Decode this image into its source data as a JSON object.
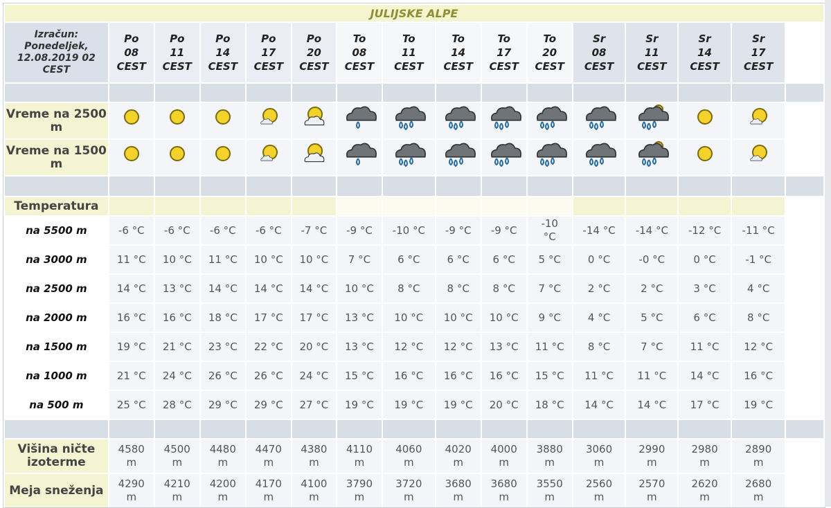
{
  "header": {
    "title": "JULIJSKE ALPE",
    "calc": "Izračun: Ponedeljek, 12.08.2019 02 CEST"
  },
  "columns": [
    {
      "day": "Po",
      "hour": "08",
      "tz": "CEST"
    },
    {
      "day": "Po",
      "hour": "11",
      "tz": "CEST"
    },
    {
      "day": "Po",
      "hour": "14",
      "tz": "CEST"
    },
    {
      "day": "Po",
      "hour": "17",
      "tz": "CEST"
    },
    {
      "day": "Po",
      "hour": "20",
      "tz": "CEST"
    },
    {
      "day": "To",
      "hour": "08",
      "tz": "CEST"
    },
    {
      "day": "To",
      "hour": "11",
      "tz": "CEST"
    },
    {
      "day": "To",
      "hour": "14",
      "tz": "CEST"
    },
    {
      "day": "To",
      "hour": "17",
      "tz": "CEST"
    },
    {
      "day": "To",
      "hour": "20",
      "tz": "CEST"
    },
    {
      "day": "Sr",
      "hour": "08",
      "tz": "CEST"
    },
    {
      "day": "Sr",
      "hour": "11",
      "tz": "CEST"
    },
    {
      "day": "Sr",
      "hour": "14",
      "tz": "CEST"
    },
    {
      "day": "Sr",
      "hour": "17",
      "tz": "CEST"
    }
  ],
  "weather_rows": [
    {
      "label": "Vreme na 2500 m"
    },
    {
      "label": "Vreme na 1500 m"
    }
  ],
  "temperature": {
    "label": "Temperatura",
    "rows": [
      {
        "label": "na 5500 m",
        "cells": [
          "-6 °C",
          "-6 °C",
          "-6 °C",
          "-6 °C",
          "-7 °C",
          "-9 °C",
          "-10 °C",
          "-9 °C",
          "-9 °C",
          "-10 °C",
          "-14 °C",
          "-14 °C",
          "-12 °C",
          "-11 °C"
        ]
      },
      {
        "label": "na 3000 m",
        "cells": [
          "11 °C",
          "10 °C",
          "11 °C",
          "10 °C",
          "10 °C",
          "7 °C",
          "6 °C",
          "6 °C",
          "6 °C",
          "5 °C",
          "0 °C",
          "-0 °C",
          "0 °C",
          "-1 °C"
        ]
      },
      {
        "label": "na 2500 m",
        "cells": [
          "14 °C",
          "13 °C",
          "14 °C",
          "14 °C",
          "14 °C",
          "10 °C",
          "8 °C",
          "8 °C",
          "8 °C",
          "7 °C",
          "2 °C",
          "2 °C",
          "3 °C",
          "4 °C"
        ]
      },
      {
        "label": "na 2000 m",
        "cells": [
          "16 °C",
          "16 °C",
          "18 °C",
          "17 °C",
          "17 °C",
          "13 °C",
          "10 °C",
          "10 °C",
          "10 °C",
          "9 °C",
          "4 °C",
          "5 °C",
          "6 °C",
          "8 °C"
        ]
      },
      {
        "label": "na 1500 m",
        "cells": [
          "19 °C",
          "21 °C",
          "23 °C",
          "22 °C",
          "20 °C",
          "13 °C",
          "12 °C",
          "12 °C",
          "13 °C",
          "11 °C",
          "8 °C",
          "7 °C",
          "11 °C",
          "12 °C"
        ]
      },
      {
        "label": "na 1000 m",
        "cells": [
          "21 °C",
          "24 °C",
          "26 °C",
          "26 °C",
          "24 °C",
          "15 °C",
          "16 °C",
          "16 °C",
          "16 °C",
          "15 °C",
          "11 °C",
          "11 °C",
          "14 °C",
          "16 °C"
        ]
      },
      {
        "label": "na 500 m",
        "cells": [
          "25 °C",
          "28 °C",
          "29 °C",
          "29 °C",
          "27 °C",
          "19 °C",
          "19 °C",
          "19 °C",
          "20 °C",
          "18 °C",
          "14 °C",
          "14 °C",
          "17 °C",
          "19 °C"
        ]
      }
    ]
  },
  "isotherm": {
    "label": "Višina ničte izoterme",
    "cells": [
      "4580 m",
      "4500 m",
      "4480 m",
      "4470 m",
      "4380 m",
      "4110 m",
      "4060 m",
      "4020 m",
      "4000 m",
      "3880 m",
      "3060 m",
      "2990 m",
      "2980 m",
      "2890 m"
    ]
  },
  "snow": {
    "label": "Meja sneženja",
    "cells": [
      "4290 m",
      "4210 m",
      "4200 m",
      "4170 m",
      "4100 m",
      "3790 m",
      "3720 m",
      "3680 m",
      "3680 m",
      "3550 m",
      "2560 m",
      "2570 m",
      "2620 m",
      "2680 m"
    ]
  }
}
